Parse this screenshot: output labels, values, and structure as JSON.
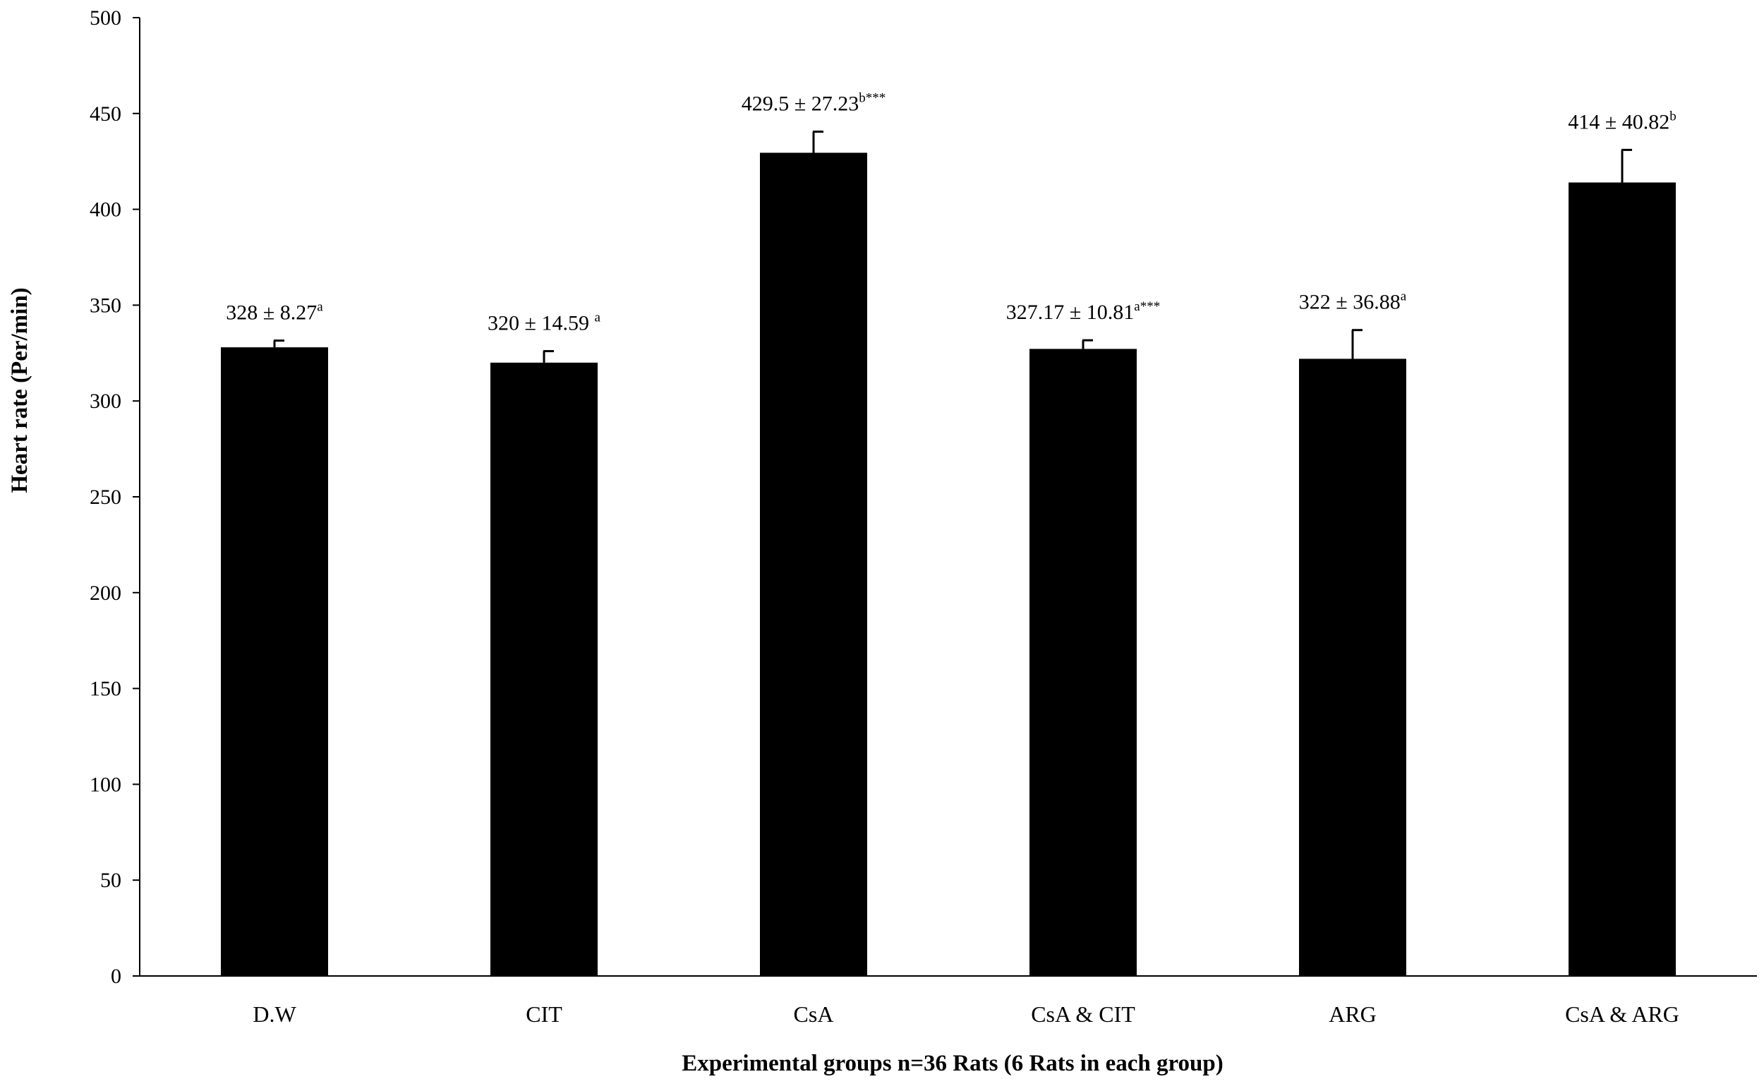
{
  "chart_data": {
    "type": "bar",
    "xlabel": "Experimental groups n=36 Rats (6 Rats in each group)",
    "ylabel": "Heart rate (Per/min)",
    "ylim": [
      0,
      500
    ],
    "yticks": [
      0,
      50,
      100,
      150,
      200,
      250,
      300,
      350,
      400,
      450,
      500
    ],
    "grid": false,
    "legend": "none",
    "bar_color": "#000000",
    "categories": [
      "D.W",
      "CIT",
      "CsA",
      "CsA & CIT",
      "ARG",
      "CsA & ARG"
    ],
    "values": [
      328,
      320,
      429.5,
      327.17,
      322,
      414
    ],
    "error_bars_upper": [
      3.5,
      6,
      11,
      4.5,
      15,
      17
    ],
    "data_labels": [
      {
        "text": "328 ± 8.27",
        "sup": "a"
      },
      {
        "text": "320 ± 14.59 ",
        "sup": "a"
      },
      {
        "text": "429.5 ± 27.23",
        "sup": "b***"
      },
      {
        "text": "327.17 ± 10.81",
        "sup": "a***"
      },
      {
        "text": "322 ± 36.88",
        "sup": "a"
      },
      {
        "text": "414 ± 40.82",
        "sup": "b"
      }
    ]
  }
}
